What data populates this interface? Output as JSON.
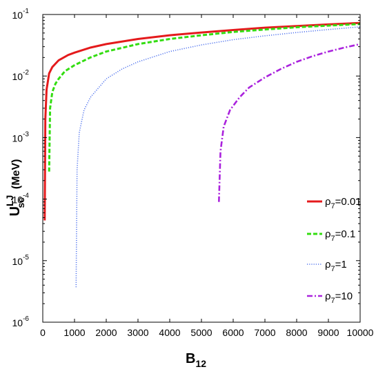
{
  "chart_data": {
    "type": "line",
    "xlabel": "B",
    "xlabel_sub": "12",
    "ylabel": {
      "main": "U",
      "sup": "LJ",
      "sub": "sc",
      "unit": "(MeV)"
    },
    "xlim": [
      0,
      10000
    ],
    "ylim": [
      1e-06,
      0.1
    ],
    "yscale": "log",
    "grid": false,
    "legend_position": "lower-right",
    "x_ticks": [
      "0",
      "1000",
      "2000",
      "3000",
      "4000",
      "5000",
      "6000",
      "7000",
      "8000",
      "9000",
      "10000"
    ],
    "y_ticks": [
      {
        "base": "10",
        "exp": "-6"
      },
      {
        "base": "10",
        "exp": "-5"
      },
      {
        "base": "10",
        "exp": "-4"
      },
      {
        "base": "10",
        "exp": "-3"
      },
      {
        "base": "10",
        "exp": "-2"
      },
      {
        "base": "10",
        "exp": "-1"
      }
    ],
    "series": [
      {
        "name": "ρ7=0.01",
        "legend": {
          "symbol": "ρ",
          "sub": "7",
          "value": "=0.01"
        },
        "color": "#e41a1c",
        "dash": "solid",
        "points": [
          [
            60,
            4.5e-05
          ],
          [
            80,
            0.002
          ],
          [
            120,
            0.006
          ],
          [
            200,
            0.011
          ],
          [
            300,
            0.014
          ],
          [
            500,
            0.018
          ],
          [
            800,
            0.022
          ],
          [
            1000,
            0.024
          ],
          [
            1500,
            0.029
          ],
          [
            2000,
            0.033
          ],
          [
            3000,
            0.04
          ],
          [
            4000,
            0.046
          ],
          [
            5000,
            0.051
          ],
          [
            6000,
            0.056
          ],
          [
            7000,
            0.061
          ],
          [
            8000,
            0.065
          ],
          [
            9000,
            0.069
          ],
          [
            10000,
            0.073
          ]
        ]
      },
      {
        "name": "ρ7=0.1",
        "legend": {
          "symbol": "ρ",
          "sub": "7",
          "value": "=0.1"
        },
        "color": "#33dd11",
        "dash": "dashed",
        "points": [
          [
            200,
            0.00028
          ],
          [
            230,
            0.003
          ],
          [
            300,
            0.0055
          ],
          [
            400,
            0.0075
          ],
          [
            500,
            0.009
          ],
          [
            700,
            0.012
          ],
          [
            1000,
            0.015
          ],
          [
            1500,
            0.02
          ],
          [
            2000,
            0.025
          ],
          [
            3000,
            0.033
          ],
          [
            4000,
            0.04
          ],
          [
            5000,
            0.046
          ],
          [
            6000,
            0.052
          ],
          [
            7000,
            0.057
          ],
          [
            8000,
            0.062
          ],
          [
            9000,
            0.066
          ],
          [
            10000,
            0.07
          ]
        ]
      },
      {
        "name": "ρ7=1",
        "legend": {
          "symbol": "ρ",
          "sub": "7",
          "value": "=1"
        },
        "color": "#5577ee",
        "dash": "dotted",
        "points": [
          [
            1050,
            3.7e-06
          ],
          [
            1080,
            0.0003
          ],
          [
            1150,
            0.0012
          ],
          [
            1300,
            0.0028
          ],
          [
            1500,
            0.0045
          ],
          [
            2000,
            0.009
          ],
          [
            2500,
            0.013
          ],
          [
            3000,
            0.017
          ],
          [
            4000,
            0.025
          ],
          [
            5000,
            0.032
          ],
          [
            6000,
            0.039
          ],
          [
            7000,
            0.045
          ],
          [
            8000,
            0.051
          ],
          [
            9000,
            0.057
          ],
          [
            10000,
            0.063
          ]
        ]
      },
      {
        "name": "ρ7=10",
        "legend": {
          "symbol": "ρ",
          "sub": "7",
          "value": "=10"
        },
        "color": "#aa22dd",
        "dash": "dashdot",
        "points": [
          [
            5550,
            9e-05
          ],
          [
            5600,
            0.0006
          ],
          [
            5700,
            0.0015
          ],
          [
            5900,
            0.0028
          ],
          [
            6200,
            0.0045
          ],
          [
            6500,
            0.0065
          ],
          [
            7000,
            0.0095
          ],
          [
            7500,
            0.013
          ],
          [
            8000,
            0.017
          ],
          [
            8500,
            0.021
          ],
          [
            9000,
            0.025
          ],
          [
            9500,
            0.029
          ],
          [
            10000,
            0.033
          ]
        ]
      }
    ]
  }
}
